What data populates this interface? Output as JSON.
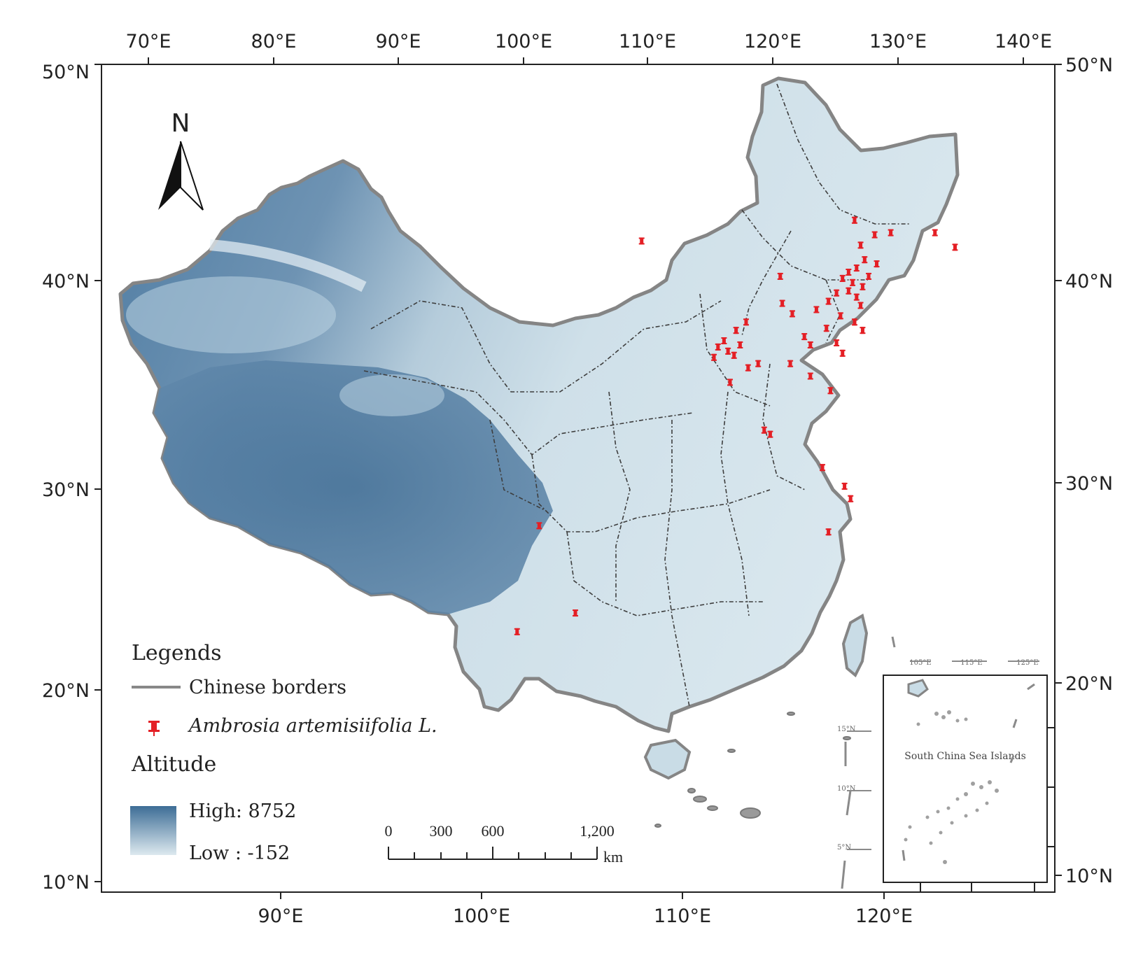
{
  "map": {
    "top_axis_labels": [
      "70°E",
      "80°E",
      "90°E",
      "100°E",
      "110°E",
      "120°E",
      "130°E",
      "140°E"
    ],
    "bottom_axis_labels": [
      "90°E",
      "100°E",
      "110°E",
      "120°E"
    ],
    "left_axis_labels": [
      "50°N",
      "40°N",
      "30°N",
      "20°N",
      "10°N"
    ],
    "right_axis_labels": [
      "50°N",
      "40°N",
      "30°N",
      "20°N",
      "10°N"
    ],
    "north_arrow_label": "N",
    "land_color": "#c9dce6",
    "border_color": "#7a7a7a",
    "marker_color": "#e41f25",
    "high_altitude_color": "#3d6d96",
    "low_altitude_color": "#dde9ef"
  },
  "legend": {
    "title": "Legends",
    "border_label": "Chinese borders",
    "species_label": "Ambrosia artemisiifolia L.",
    "altitude_title": "Altitude",
    "altitude_high": "High: 8752",
    "altitude_low": "Low : -152"
  },
  "scale_bar": {
    "ticks": [
      "0",
      "300",
      "600",
      "1,200"
    ],
    "unit": "km"
  },
  "inset": {
    "title": "South China Sea Islands",
    "top_ticks": [
      "105°E",
      "115°E",
      "125°E"
    ],
    "left_ticks": [
      "15°N",
      "10°N",
      "5°N"
    ]
  },
  "occurrences": [
    [
      118.5,
      42.5
    ],
    [
      119.5,
      41.8
    ],
    [
      120.3,
      41.9
    ],
    [
      118.8,
      41.3
    ],
    [
      122.5,
      41.9
    ],
    [
      123.5,
      41.2
    ],
    [
      119.0,
      40.6
    ],
    [
      119.6,
      40.4
    ],
    [
      118.6,
      40.2
    ],
    [
      118.2,
      40.0
    ],
    [
      117.9,
      39.7
    ],
    [
      118.4,
      39.5
    ],
    [
      119.2,
      39.8
    ],
    [
      118.9,
      39.3
    ],
    [
      118.2,
      39.1
    ],
    [
      117.6,
      39.0
    ],
    [
      118.6,
      38.8
    ],
    [
      117.2,
      38.6
    ],
    [
      118.8,
      38.4
    ],
    [
      116.6,
      38.2
    ],
    [
      117.8,
      37.9
    ],
    [
      118.5,
      37.6
    ],
    [
      118.9,
      37.2
    ],
    [
      117.1,
      37.3
    ],
    [
      117.6,
      36.6
    ],
    [
      116.3,
      36.5
    ],
    [
      116.0,
      36.9
    ],
    [
      115.4,
      38.0
    ],
    [
      114.9,
      38.5
    ],
    [
      114.8,
      39.8
    ],
    [
      113.1,
      37.6
    ],
    [
      112.6,
      37.2
    ],
    [
      112.0,
      36.7
    ],
    [
      111.7,
      36.4
    ],
    [
      111.5,
      35.9
    ],
    [
      112.2,
      36.2
    ],
    [
      112.8,
      36.5
    ],
    [
      113.2,
      35.4
    ],
    [
      113.7,
      35.6
    ],
    [
      112.3,
      34.7
    ],
    [
      114.0,
      32.4
    ],
    [
      114.3,
      32.2
    ],
    [
      115.3,
      35.6
    ],
    [
      116.3,
      35.0
    ],
    [
      117.3,
      34.3
    ],
    [
      116.9,
      30.6
    ],
    [
      118.3,
      29.1
    ],
    [
      117.2,
      27.5
    ],
    [
      118.0,
      29.7
    ],
    [
      107.9,
      41.5
    ],
    [
      102.8,
      27.8
    ],
    [
      101.7,
      22.7
    ],
    [
      104.6,
      23.6
    ],
    [
      117.9,
      36.1
    ],
    [
      112.5,
      36.0
    ]
  ]
}
